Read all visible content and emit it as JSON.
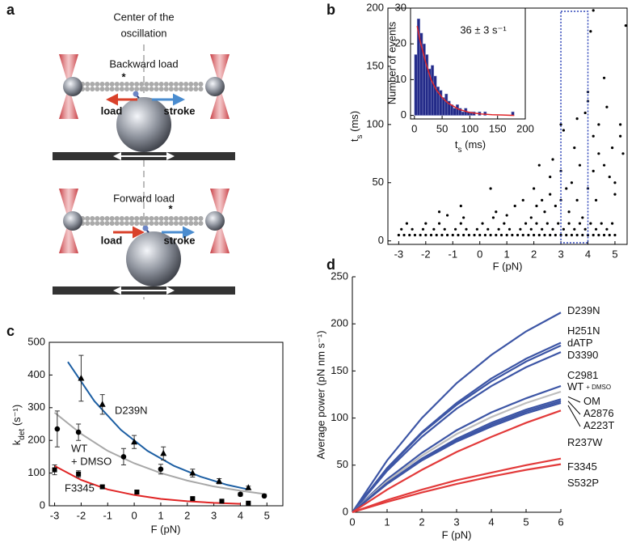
{
  "panel_labels": [
    "a",
    "b",
    "c",
    "d"
  ],
  "diagram": {
    "center_label": [
      "Center of the",
      "oscillation"
    ],
    "scenes": [
      {
        "title": "Backward load",
        "marker": "*",
        "load": "load",
        "stroke": "stroke"
      },
      {
        "title": "Forward load",
        "marker": "*",
        "load": "load",
        "stroke": "stroke"
      }
    ]
  },
  "chart_data": [
    {
      "type": "scatter",
      "x_label": "F (pN)",
      "y_label": {
        "main": "t",
        "sub": "s",
        "rest": " (ms)"
      },
      "color": "#000000",
      "x": [
        -3,
        -2.8,
        -2.6,
        -2.4,
        -2.2,
        -2,
        -1.8,
        -1.6,
        -1.4,
        -1.2,
        -1,
        -0.8,
        -0.6,
        -0.4,
        -0.2,
        0,
        0.2,
        0.4,
        0.6,
        0.8,
        1,
        1.2,
        1.4,
        1.6,
        1.8,
        2,
        2.2,
        2.4,
        2.6,
        2.8,
        3,
        3.2,
        3.4,
        3.6,
        3.8,
        4,
        4.2,
        4.4,
        4.6,
        4.8,
        5,
        -2.9,
        -2.5,
        -2.1,
        -1.7,
        -1.3,
        -0.9,
        -0.5,
        -0.1,
        0.3,
        0.7,
        1.1,
        1.5,
        1.9,
        2.3,
        2.7,
        3.1,
        3.5,
        3.9,
        4.3,
        4.7,
        -2.7,
        -2,
        -1.5,
        -0.7,
        0.1,
        0.9,
        1.7,
        2.1,
        2.5,
        2.9,
        3.3,
        3.7,
        4.1,
        4.5,
        4.9,
        -1.5,
        -1.2,
        -0.7,
        0.5,
        0.6,
        1,
        1.3,
        1.9,
        2,
        2.1,
        2.4,
        2.3,
        2.6,
        2.6,
        2.7,
        2.8,
        3,
        3,
        3.1,
        3.2,
        3.3,
        3.4,
        3.5,
        3.6,
        3.7,
        3.8,
        3.9,
        4,
        4,
        4.1,
        4.2,
        4.2,
        4.3,
        4.4,
        4.4,
        4.6,
        4.7,
        4.8,
        4.9,
        5,
        5,
        5.2,
        5.3,
        5.4,
        4.2,
        4,
        3.6,
        3,
        4.6,
        2.2,
        0.4,
        -0.6,
        1.6,
        5.2
      ],
      "values": [
        5,
        5,
        5,
        5,
        5,
        5,
        5,
        5,
        5,
        5,
        5,
        5,
        5,
        5,
        5,
        5,
        5,
        5,
        5,
        5,
        5,
        5,
        5,
        5,
        5,
        5,
        5,
        5,
        5,
        5,
        5,
        5,
        5,
        5,
        5,
        5,
        5,
        5,
        5,
        5,
        5,
        10,
        10,
        10,
        10,
        10,
        10,
        10,
        10,
        10,
        10,
        10,
        10,
        10,
        10,
        10,
        10,
        10,
        10,
        10,
        10,
        15,
        15,
        15,
        15,
        15,
        15,
        15,
        15,
        15,
        15,
        15,
        15,
        15,
        15,
        15,
        25,
        22,
        30,
        20,
        25,
        22,
        30,
        20,
        45,
        30,
        25,
        35,
        40,
        55,
        70,
        30,
        35,
        60,
        95,
        45,
        25,
        50,
        80,
        35,
        65,
        20,
        110,
        45,
        120,
        180,
        60,
        90,
        35,
        75,
        100,
        65,
        115,
        55,
        80,
        50,
        40,
        90,
        75,
        185,
        198,
        128,
        105,
        100,
        140,
        65,
        45,
        20,
        35,
        100
      ],
      "xlim": [
        -3.4,
        5.45
      ],
      "ylim": [
        -3,
        200
      ],
      "xticks": [
        -3,
        -2,
        -1,
        0,
        1,
        2,
        3,
        4,
        5
      ],
      "yticks": [
        0,
        50,
        100,
        150,
        200
      ],
      "highlight_x": [
        3,
        4
      ],
      "highlight_color": "#2d44b8"
    },
    {
      "type": "histogram",
      "annotation": "36 ± 3 s⁻¹",
      "x_label": {
        "main": "t",
        "sub": "s",
        "rest": " (ms)"
      },
      "y_label": "Number of events",
      "bins": [
        0,
        5,
        10,
        15,
        20,
        25,
        30,
        35,
        40,
        45,
        50,
        55,
        60,
        65,
        70,
        75,
        80,
        85,
        90,
        95,
        100,
        105,
        110,
        115,
        120,
        125,
        130,
        135,
        140,
        145,
        150,
        155,
        160,
        165,
        170,
        175,
        180
      ],
      "values": [
        17,
        27,
        23,
        20,
        17,
        13,
        14,
        11,
        8,
        7,
        5,
        6,
        4,
        3,
        2,
        3,
        2,
        1,
        2,
        1,
        1,
        1,
        0,
        1,
        0,
        1,
        0,
        0,
        0,
        0,
        0,
        0,
        0,
        0,
        0,
        1
      ],
      "color": "#232a88",
      "fit": {
        "color": "#e0262a",
        "x": [
          5,
          10,
          20,
          30,
          40,
          50,
          60,
          80,
          100,
          120,
          140,
          160,
          180
        ],
        "values": [
          25,
          21,
          15,
          10,
          7,
          5,
          3.5,
          1.7,
          0.8,
          0.4,
          0.2,
          0.1,
          0
        ]
      },
      "xlim": [
        -7,
        200
      ],
      "ylim": [
        -1,
        30
      ],
      "xticks": [
        0,
        50,
        100,
        150,
        200
      ],
      "yticks": [
        0,
        10,
        20,
        30
      ]
    },
    {
      "type": "scatter-errorbar",
      "x_label": "F (pN)",
      "y_label": {
        "main": "k",
        "sub": "det",
        "rest": " (s⁻¹)"
      },
      "series": [
        {
          "name": "D239N",
          "color": "#1d5fa3",
          "marker": "triangle",
          "x": [
            -2,
            -1.2,
            0,
            1.1,
            2.2,
            3.2,
            4.3
          ],
          "values": [
            390,
            310,
            195,
            160,
            100,
            75,
            55
          ],
          "errors": [
            70,
            30,
            20,
            20,
            12,
            8,
            5
          ],
          "fit": {
            "x": [
              -2.5,
              -1.5,
              -0.5,
              0.5,
              1.5,
              2.5,
              3.5,
              4.3
            ],
            "values": [
              440,
              320,
              232,
              168,
              122,
              89,
              64,
              50
            ]
          }
        },
        {
          "name": "WT",
          "name_sub": "+ DMSO",
          "color": "#a8a8a8",
          "marker": "circle",
          "x": [
            -2.9,
            -2.1,
            -0.4,
            1,
            4,
            4.9
          ],
          "values": [
            235,
            225,
            150,
            112,
            35,
            30
          ],
          "errors": [
            55,
            25,
            25,
            15,
            5,
            3
          ],
          "fit": {
            "x": [
              -3,
              -2,
              -1,
              0,
              1,
              2,
              3,
              4,
              5
            ],
            "values": [
              285,
              220,
              168,
              130,
              100,
              77,
              59,
              46,
              35
            ]
          }
        },
        {
          "name": "F3345",
          "color": "#e02424",
          "marker": "square",
          "x": [
            -3,
            -2.1,
            -1.2,
            0.1,
            2.2,
            3.3,
            4.3
          ],
          "values": [
            110,
            97,
            58,
            42,
            22,
            14,
            8
          ],
          "errors": [
            15,
            10,
            5,
            5,
            3,
            2,
            2
          ],
          "fit": {
            "x": [
              -3,
              -2,
              -1,
              0,
              1,
              2,
              3,
              4
            ],
            "values": [
              122,
              79,
              50,
              33,
              21,
              14,
              9,
              6
            ]
          }
        }
      ],
      "xlim": [
        -3.2,
        5.6
      ],
      "ylim": [
        0,
        500
      ],
      "xticks": [
        -3,
        -2,
        -1,
        0,
        1,
        2,
        3,
        4,
        5
      ],
      "yticks": [
        0,
        100,
        200,
        300,
        400,
        500
      ]
    },
    {
      "type": "line",
      "x_label": "F (pN)",
      "y_label": "Average power (pN nm s⁻¹)",
      "x": [
        0,
        1,
        2,
        3,
        4,
        5,
        6
      ],
      "series": [
        {
          "name": "D239N",
          "color": "#3c55a5",
          "values": [
            0,
            55,
            100,
            137,
            167,
            192,
            212
          ]
        },
        {
          "name": "H251N",
          "color": "#3c55a5",
          "values": [
            0,
            47,
            85,
            116,
            142,
            163,
            180
          ]
        },
        {
          "name": "dATP",
          "color": "#3c55a5",
          "values": [
            0,
            46,
            84,
            114,
            139,
            160,
            177
          ]
        },
        {
          "name": "D3390",
          "color": "#3c55a5",
          "values": [
            0,
            44,
            80,
            110,
            134,
            154,
            170
          ]
        },
        {
          "name": "C2981",
          "color": "#3c55a5",
          "values": [
            0,
            35,
            63,
            87,
            106,
            121,
            134
          ]
        },
        {
          "name": "WT",
          "name_sub": "+ DMSO",
          "color": "#bdbdbd",
          "values": [
            0,
            33,
            60,
            83,
            101,
            116,
            128
          ]
        },
        {
          "name": "OM",
          "color": "#3c55a5",
          "values": [
            0,
            31,
            57,
            78,
            95,
            109,
            120
          ]
        },
        {
          "name": "A2876",
          "color": "#3c55a5",
          "values": [
            0,
            31,
            56,
            76,
            93,
            107,
            118
          ]
        },
        {
          "name": "A223T",
          "color": "#3c55a5",
          "values": [
            0,
            30,
            55,
            75,
            91,
            105,
            116
          ]
        },
        {
          "name": "R237W",
          "color": "#e23a3a",
          "values": [
            0,
            24,
            45,
            64,
            80,
            95,
            108
          ]
        },
        {
          "name": "F3345",
          "color": "#e23a3a",
          "values": [
            0,
            13,
            24,
            34,
            42,
            50,
            57
          ]
        },
        {
          "name": "S532P",
          "color": "#e23a3a",
          "values": [
            0,
            11,
            21,
            30,
            38,
            45,
            51
          ]
        }
      ],
      "xlim": [
        0,
        6
      ],
      "ylim": [
        0,
        250
      ],
      "xticks": [
        0,
        1,
        2,
        3,
        4,
        5,
        6
      ],
      "yticks": [
        0,
        50,
        100,
        150,
        200,
        250
      ]
    }
  ]
}
